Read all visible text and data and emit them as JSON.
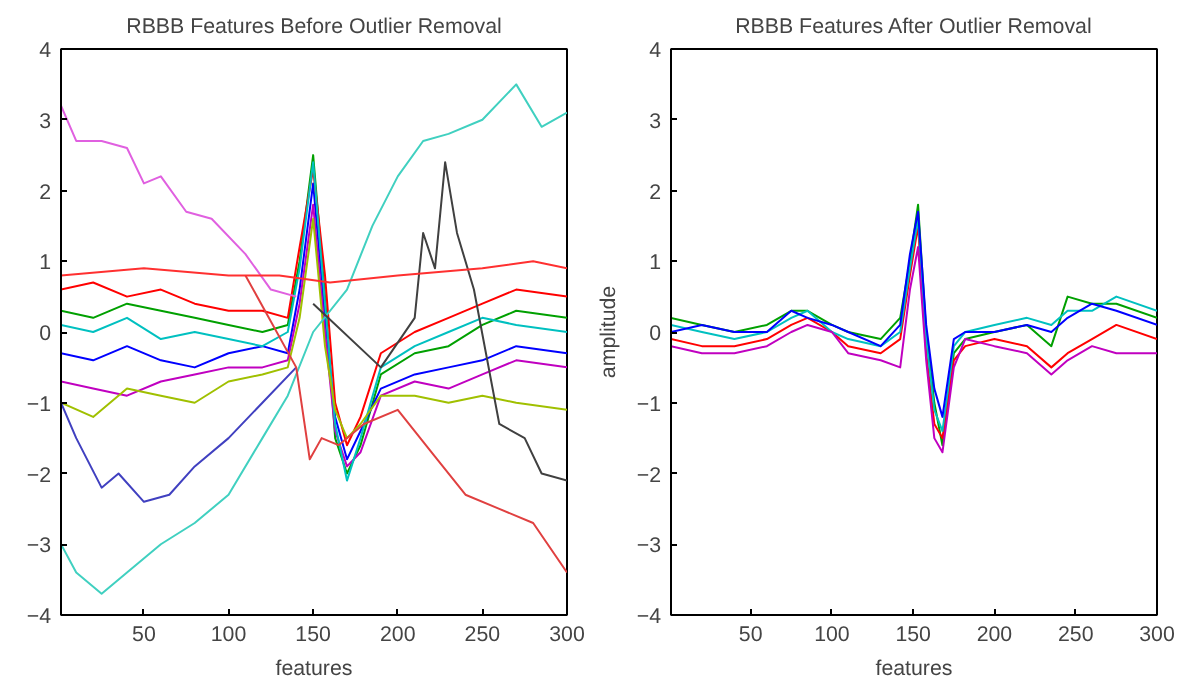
{
  "chart_data": [
    {
      "type": "line",
      "title": "RBBB Features Before Outlier Removal",
      "xlabel": "features",
      "xlim": [
        1,
        300
      ],
      "ylim": [
        -4,
        4
      ],
      "xticks": [
        50,
        100,
        150,
        200,
        250,
        300
      ],
      "yticks": [
        -4,
        -3,
        -2,
        -1,
        0,
        1,
        2,
        3,
        4
      ],
      "grid": false,
      "marker": "none",
      "line_style": "solid",
      "series": [
        {
          "color": "#00a000",
          "x": [
            1,
            20,
            40,
            60,
            80,
            100,
            120,
            135,
            142,
            150,
            157,
            163,
            170,
            178,
            190,
            210,
            230,
            250,
            270,
            300
          ],
          "values": [
            0.3,
            0.2,
            0.4,
            0.3,
            0.2,
            0.1,
            0.0,
            0.1,
            1.0,
            2.5,
            0.5,
            -1.5,
            -2.0,
            -1.6,
            -0.6,
            -0.3,
            -0.2,
            0.1,
            0.3,
            0.2
          ]
        },
        {
          "color": "#0000ff",
          "x": [
            1,
            20,
            40,
            60,
            80,
            100,
            120,
            135,
            142,
            150,
            157,
            163,
            170,
            178,
            190,
            210,
            230,
            250,
            270,
            300
          ],
          "values": [
            -0.3,
            -0.4,
            -0.2,
            -0.4,
            -0.5,
            -0.3,
            -0.2,
            -0.3,
            0.6,
            2.1,
            0.2,
            -1.2,
            -1.8,
            -1.4,
            -0.8,
            -0.6,
            -0.5,
            -0.4,
            -0.2,
            -0.3
          ]
        },
        {
          "color": "#ff0000",
          "x": [
            1,
            20,
            40,
            60,
            80,
            100,
            120,
            135,
            142,
            150,
            157,
            163,
            170,
            178,
            190,
            210,
            230,
            250,
            270,
            300
          ],
          "values": [
            0.6,
            0.7,
            0.5,
            0.6,
            0.4,
            0.3,
            0.3,
            0.2,
            1.2,
            2.3,
            0.8,
            -1.0,
            -1.6,
            -1.2,
            -0.3,
            0.0,
            0.2,
            0.4,
            0.6,
            0.5
          ]
        },
        {
          "color": "#c000c0",
          "x": [
            1,
            20,
            40,
            60,
            80,
            100,
            120,
            135,
            142,
            150,
            157,
            163,
            170,
            178,
            190,
            210,
            230,
            250,
            270,
            300
          ],
          "values": [
            -0.7,
            -0.8,
            -0.9,
            -0.7,
            -0.6,
            -0.5,
            -0.5,
            -0.4,
            0.4,
            1.8,
            0.0,
            -1.4,
            -1.9,
            -1.7,
            -0.9,
            -0.7,
            -0.8,
            -0.6,
            -0.4,
            -0.5
          ]
        },
        {
          "color": "#00c0c0",
          "x": [
            1,
            20,
            40,
            60,
            80,
            100,
            120,
            135,
            142,
            150,
            157,
            163,
            170,
            178,
            190,
            210,
            230,
            250,
            270,
            300
          ],
          "values": [
            0.1,
            0.0,
            0.2,
            -0.1,
            0.0,
            -0.1,
            -0.2,
            0.0,
            0.9,
            2.4,
            0.4,
            -1.3,
            -2.1,
            -1.5,
            -0.5,
            -0.2,
            0.0,
            0.2,
            0.1,
            0.0
          ]
        },
        {
          "color": "#a0c000",
          "x": [
            1,
            20,
            40,
            60,
            80,
            100,
            120,
            135,
            142,
            150,
            157,
            163,
            170,
            178,
            190,
            210,
            230,
            250,
            270,
            300
          ],
          "values": [
            -1.0,
            -1.2,
            -0.8,
            -0.9,
            -1.0,
            -0.7,
            -0.6,
            -0.5,
            0.2,
            1.6,
            -0.2,
            -1.1,
            -1.5,
            -1.3,
            -0.9,
            -0.9,
            -1.0,
            -0.9,
            -1.0,
            -1.1
          ]
        },
        {
          "color": "#e060e0",
          "x": [
            1,
            10,
            25,
            40,
            50,
            60,
            75,
            90,
            110,
            125,
            140
          ],
          "values": [
            3.2,
            2.7,
            2.7,
            2.6,
            2.1,
            2.2,
            1.7,
            1.6,
            1.1,
            0.6,
            0.5
          ]
        },
        {
          "color": "#40d0c0",
          "x": [
            1,
            10,
            25,
            40,
            60,
            80,
            100,
            120,
            135,
            150,
            170,
            185,
            200,
            215,
            230,
            250,
            270,
            285,
            300
          ],
          "values": [
            -3.0,
            -3.4,
            -3.7,
            -3.4,
            -3.0,
            -2.7,
            -2.3,
            -1.5,
            -0.9,
            0.0,
            0.6,
            1.5,
            2.2,
            2.7,
            2.8,
            3.0,
            3.5,
            2.9,
            3.1
          ]
        },
        {
          "color": "#4040c0",
          "x": [
            1,
            10,
            25,
            35,
            50,
            65,
            80,
            100,
            120,
            140
          ],
          "values": [
            -1.0,
            -1.5,
            -2.2,
            -2.0,
            -2.4,
            -2.3,
            -1.9,
            -1.5,
            -1.0,
            -0.5
          ]
        },
        {
          "color": "#e04040",
          "x": [
            110,
            140,
            148,
            155,
            165,
            180,
            200,
            220,
            240,
            260,
            280,
            300
          ],
          "values": [
            0.8,
            -0.5,
            -1.8,
            -1.5,
            -1.6,
            -1.3,
            -1.1,
            -1.7,
            -2.3,
            -2.5,
            -2.7,
            -3.4
          ]
        },
        {
          "color": "#404040",
          "x": [
            150,
            190,
            210,
            215,
            222,
            228,
            235,
            245,
            260,
            275,
            285,
            300
          ],
          "values": [
            0.4,
            -0.5,
            0.2,
            1.4,
            0.9,
            2.4,
            1.4,
            0.6,
            -1.3,
            -1.5,
            -2.0,
            -2.1
          ]
        },
        {
          "color": "#ff3030",
          "x": [
            1,
            50,
            100,
            130,
            160,
            200,
            250,
            280,
            300
          ],
          "values": [
            0.8,
            0.9,
            0.8,
            0.8,
            0.7,
            0.8,
            0.9,
            1.0,
            0.9
          ]
        }
      ]
    },
    {
      "type": "line",
      "title": "RBBB Features After Outlier Removal",
      "xlabel": "features",
      "ylabel": "amplitude",
      "xlim": [
        1,
        300
      ],
      "ylim": [
        -4,
        4
      ],
      "xticks": [
        50,
        100,
        150,
        200,
        250,
        300
      ],
      "yticks": [
        -4,
        -3,
        -2,
        -1,
        0,
        1,
        2,
        3,
        4
      ],
      "grid": false,
      "marker": "none",
      "line_style": "solid",
      "series": [
        {
          "color": "#00a000",
          "x": [
            1,
            20,
            40,
            60,
            75,
            85,
            100,
            110,
            130,
            142,
            148,
            153,
            158,
            163,
            168,
            175,
            182,
            200,
            220,
            235,
            245,
            260,
            275,
            300
          ],
          "values": [
            0.2,
            0.1,
            0.0,
            0.1,
            0.3,
            0.3,
            0.1,
            0.0,
            -0.1,
            0.2,
            1.0,
            1.8,
            0.0,
            -1.0,
            -1.6,
            -0.3,
            -0.1,
            0.0,
            0.1,
            -0.2,
            0.5,
            0.4,
            0.4,
            0.2
          ]
        },
        {
          "color": "#ff0000",
          "x": [
            1,
            20,
            40,
            60,
            75,
            85,
            100,
            110,
            130,
            142,
            148,
            153,
            158,
            163,
            168,
            175,
            182,
            200,
            220,
            235,
            245,
            260,
            275,
            300
          ],
          "values": [
            -0.1,
            -0.2,
            -0.2,
            -0.1,
            0.1,
            0.2,
            0.0,
            -0.2,
            -0.3,
            -0.1,
            0.8,
            1.5,
            -0.3,
            -1.3,
            -1.5,
            -0.4,
            -0.2,
            -0.1,
            -0.2,
            -0.5,
            -0.3,
            -0.1,
            0.1,
            -0.1
          ]
        },
        {
          "color": "#00c0c0",
          "x": [
            1,
            20,
            40,
            60,
            75,
            85,
            100,
            110,
            130,
            142,
            148,
            153,
            158,
            163,
            168,
            175,
            182,
            200,
            220,
            235,
            245,
            260,
            275,
            300
          ],
          "values": [
            0.1,
            0.0,
            -0.1,
            0.0,
            0.2,
            0.3,
            0.0,
            -0.1,
            -0.2,
            0.0,
            0.9,
            1.6,
            -0.1,
            -1.1,
            -1.4,
            -0.2,
            0.0,
            0.1,
            0.2,
            0.1,
            0.3,
            0.3,
            0.5,
            0.3
          ]
        },
        {
          "color": "#c000c0",
          "x": [
            1,
            20,
            40,
            60,
            75,
            85,
            100,
            110,
            130,
            142,
            148,
            153,
            158,
            163,
            168,
            175,
            182,
            200,
            220,
            235,
            245,
            260,
            275,
            300
          ],
          "values": [
            -0.2,
            -0.3,
            -0.3,
            -0.2,
            0.0,
            0.1,
            0.0,
            -0.3,
            -0.4,
            -0.5,
            0.6,
            1.2,
            -0.4,
            -1.5,
            -1.7,
            -0.5,
            -0.1,
            -0.2,
            -0.3,
            -0.6,
            -0.4,
            -0.2,
            -0.3,
            -0.3
          ]
        },
        {
          "color": "#0000ff",
          "x": [
            1,
            20,
            40,
            60,
            75,
            85,
            100,
            110,
            130,
            142,
            148,
            153,
            158,
            163,
            168,
            175,
            182,
            200,
            220,
            235,
            245,
            260,
            275,
            300
          ],
          "values": [
            0.0,
            0.1,
            0.0,
            0.0,
            0.3,
            0.2,
            0.1,
            0.0,
            -0.2,
            0.1,
            1.1,
            1.7,
            0.1,
            -0.8,
            -1.2,
            -0.1,
            0.0,
            0.0,
            0.1,
            0.0,
            0.2,
            0.4,
            0.3,
            0.1
          ]
        }
      ]
    }
  ]
}
